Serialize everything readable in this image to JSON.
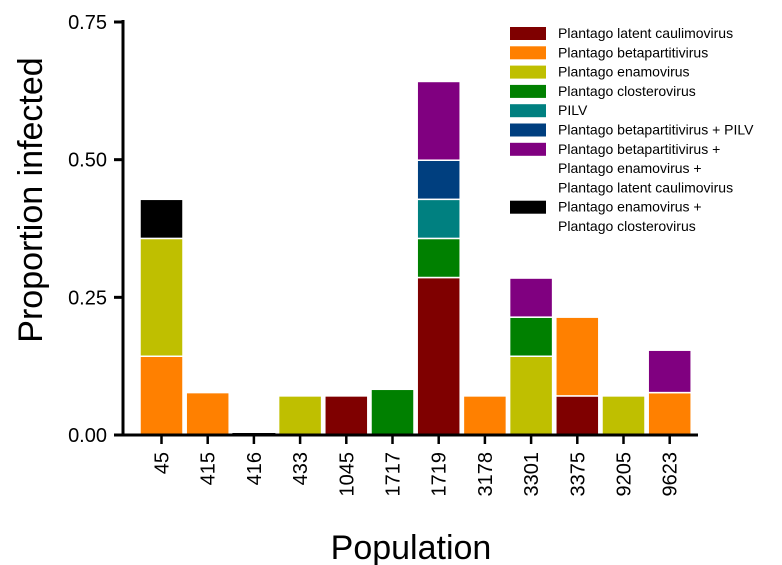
{
  "chart_data": {
    "type": "bar",
    "stacked": true,
    "title": "",
    "xlabel": "Population",
    "ylabel": "Proportion infected",
    "ylim": [
      0,
      0.75
    ],
    "yticks": [
      "0.00",
      "0.25",
      "0.50",
      "0.75"
    ],
    "grid": false,
    "legend_position": "top-right",
    "categories": [
      "45",
      "415",
      "416",
      "433",
      "1045",
      "1717",
      "1719",
      "3178",
      "3301",
      "3375",
      "9205",
      "9623"
    ],
    "series": [
      {
        "name": "Plantago latent caulimovirus",
        "color": "#7f0000",
        "values": [
          0,
          0,
          0,
          0,
          0.071,
          0,
          0.286,
          0,
          0,
          0.071,
          0,
          0
        ]
      },
      {
        "name": "Plantago betapartitivirus",
        "color": "#ff8000",
        "values": [
          0.143,
          0.077,
          0,
          0,
          0,
          0,
          0,
          0.071,
          0,
          0.143,
          0,
          0.077
        ]
      },
      {
        "name": "Plantago enamovirus",
        "color": "#bfbf00",
        "values": [
          0.214,
          0,
          0,
          0.071,
          0,
          0,
          0,
          0,
          0.143,
          0,
          0.071,
          0
        ]
      },
      {
        "name": "Plantago closterovirus",
        "color": "#008000",
        "values": [
          0,
          0,
          0,
          0,
          0,
          0.083,
          0.071,
          0,
          0.071,
          0,
          0,
          0
        ]
      },
      {
        "name": "PILV",
        "color": "#008080",
        "values": [
          0,
          0,
          0,
          0,
          0,
          0,
          0.071,
          0,
          0,
          0,
          0,
          0
        ]
      },
      {
        "name": "Plantago betapartitivirus + PILV",
        "color": "#003f7f",
        "values": [
          0,
          0,
          0,
          0,
          0,
          0,
          0.071,
          0,
          0,
          0,
          0,
          0
        ]
      },
      {
        "name": "Plantago betapartitivirus + Plantago enamovirus + Plantago latent caulimovirus",
        "legend_lines": [
          "Plantago betapartitivirus +",
          "Plantago enamovirus +",
          "Plantago latent caulimovirus"
        ],
        "color": "#800080",
        "values": [
          0,
          0,
          0,
          0,
          0,
          0,
          0.143,
          0,
          0.071,
          0,
          0,
          0.077
        ]
      },
      {
        "name": "Plantago enamovirus + Plantago closterovirus",
        "legend_lines": [
          "Plantago enamovirus +",
          "Plantago closterovirus"
        ],
        "color": "#000000",
        "values": [
          0.071,
          0,
          0,
          0,
          0,
          0,
          0,
          0,
          0,
          0,
          0,
          0
        ]
      }
    ]
  }
}
